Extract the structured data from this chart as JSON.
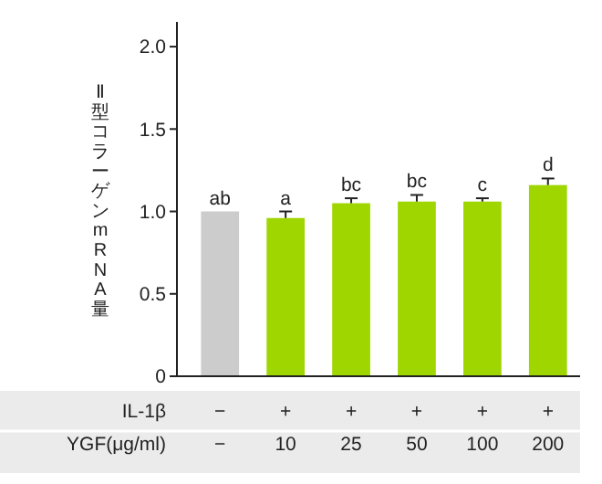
{
  "chart_data": {
    "type": "bar",
    "ylabel": "Ⅱ型コラーゲンmRNA量",
    "xlabel": "YGF(μg/ml)",
    "categories": [
      "−",
      "10",
      "25",
      "50",
      "100",
      "200"
    ],
    "values": [
      1.0,
      0.96,
      1.05,
      1.06,
      1.06,
      1.16
    ],
    "colors": [
      "#cccccc",
      "#9fd600",
      "#9fd600",
      "#9fd600",
      "#9fd600",
      "#9fd600"
    ],
    "errors": [
      null,
      [
        0.96,
        1.0
      ],
      [
        1.05,
        1.08
      ],
      [
        1.06,
        1.1
      ],
      [
        1.06,
        1.08
      ],
      [
        1.16,
        1.2
      ]
    ],
    "ylim": [
      0,
      2.15
    ],
    "yticks": [
      0,
      0.5,
      {
        "value": 1.0,
        "label": "1.0"
      },
      1.5,
      {
        "value": 2.0,
        "label": "2.0"
      }
    ],
    "grid": false,
    "annotations": [
      "IL-1β",
      "−",
      "+",
      "+",
      "+",
      "+",
      "+",
      {
        "text": "ab",
        "x": "−",
        "y": 1.0
      },
      {
        "text": "a",
        "x": "10",
        "y": 1.0
      },
      {
        "text": "bc",
        "x": "25",
        "y": 1.08
      },
      {
        "text": "bc",
        "x": "50",
        "y": 1.1
      },
      {
        "text": "c",
        "x": "100",
        "y": 1.08
      },
      {
        "text": "d",
        "x": "200",
        "y": 1.2
      }
    ]
  }
}
